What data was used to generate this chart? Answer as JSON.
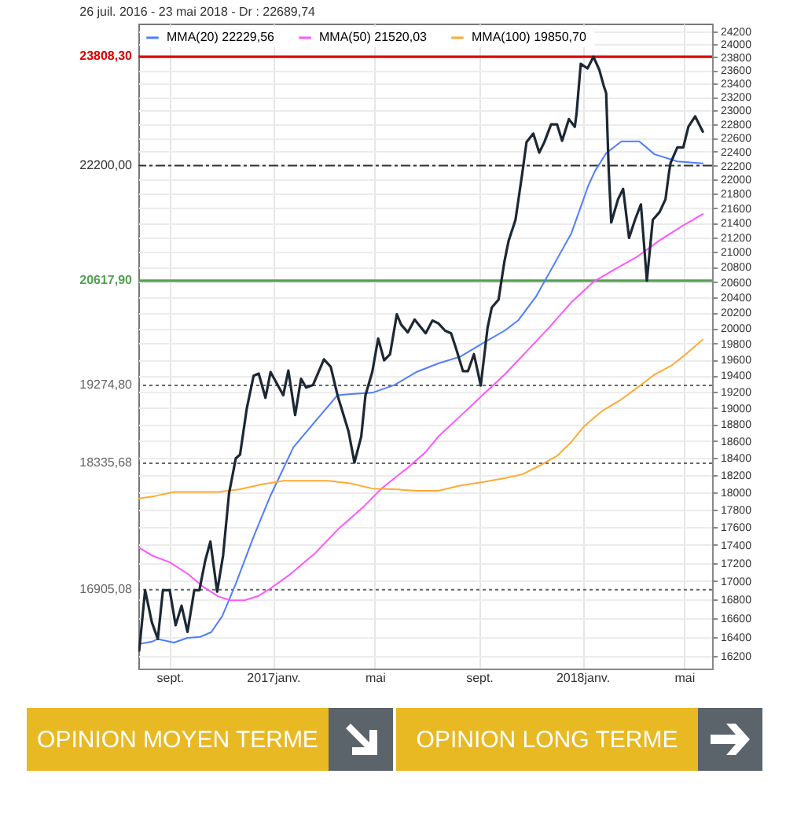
{
  "chart_data": {
    "type": "line",
    "title": "26 juil. 2016 - 23 mai 2018 - Dr : 22689,74",
    "series": [
      {
        "color": "#1c2833",
        "x": [
          "2016-07-27",
          "2016-08-03",
          "2016-08-11",
          "2016-08-18",
          "2016-08-24",
          "2016-09-01",
          "2016-09-08",
          "2016-09-15",
          "2016-09-22",
          "2016-09-30",
          "2016-10-06",
          "2016-10-13",
          "2016-10-19",
          "2016-10-27",
          "2016-11-03",
          "2016-11-10",
          "2016-11-18",
          "2016-11-23",
          "2016-12-01",
          "2016-12-09",
          "2016-12-15",
          "2016-12-23",
          "2016-12-29",
          "2017-01-13",
          "2017-01-19",
          "2017-01-27",
          "2017-02-03",
          "2017-02-09",
          "2017-02-17",
          "2017-03-02",
          "2017-03-10",
          "2017-03-18",
          "2017-03-31",
          "2017-04-07",
          "2017-04-15",
          "2017-04-20",
          "2017-04-28",
          "2017-05-05",
          "2017-05-12",
          "2017-05-19",
          "2017-05-27",
          "2017-06-01",
          "2017-06-09",
          "2017-06-17",
          "2017-06-30",
          "2017-07-08",
          "2017-07-15",
          "2017-07-23",
          "2017-07-30",
          "2017-08-05",
          "2017-08-13",
          "2017-08-19",
          "2017-08-26",
          "2017-09-03",
          "2017-09-11",
          "2017-09-16",
          "2017-09-24",
          "2017-10-01",
          "2017-10-06",
          "2017-10-14",
          "2017-10-22",
          "2017-10-27",
          "2017-11-04",
          "2017-11-11",
          "2017-11-17",
          "2017-11-25",
          "2017-12-02",
          "2017-12-08",
          "2017-12-16",
          "2017-12-23",
          "2017-12-25",
          "2017-12-30",
          "2018-01-07",
          "2018-01-14",
          "2018-01-21",
          "2018-01-26",
          "2018-01-29",
          "2018-02-01",
          "2018-02-04",
          "2018-02-12",
          "2018-02-18",
          "2018-02-25",
          "2018-03-04",
          "2018-03-11",
          "2018-03-18",
          "2018-03-25",
          "2018-04-02",
          "2018-04-09",
          "2018-04-13",
          "2018-04-15",
          "2018-04-23",
          "2018-04-30",
          "2018-05-06",
          "2018-05-14",
          "2018-05-23"
        ],
        "values": [
          16256,
          16900,
          16553,
          16378,
          16900,
          16900,
          16524,
          16732,
          16453,
          16900,
          16900,
          17226,
          17436,
          16884,
          17281,
          17983,
          18394,
          18438,
          18995,
          19396,
          19423,
          19123,
          19442,
          19155,
          19462,
          18912,
          19358,
          19249,
          19280,
          19602,
          19508,
          19155,
          18714,
          18344,
          18653,
          19155,
          19442,
          19866,
          19590,
          19667,
          20178,
          20045,
          19944,
          20110,
          19933,
          20096,
          20060,
          19965,
          19933,
          19735,
          19454,
          19454,
          19667,
          19275,
          19999,
          20265,
          20367,
          20877,
          21158,
          21439,
          22090,
          22535,
          22661,
          22385,
          22535,
          22796,
          22796,
          22557,
          22873,
          22760,
          22949,
          23699,
          23629,
          23808,
          23605,
          23372,
          23256,
          22136,
          21403,
          21724,
          21870,
          21192,
          21439,
          21654,
          20618,
          21439,
          21547,
          21724,
          22090,
          22237,
          22461,
          22461,
          22760,
          22913,
          22690
        ]
      },
      {
        "name": "MMA(20)  22229,56",
        "color": "#4f7dff",
        "x": [
          "2016-07-27",
          "2016-08-11",
          "2016-08-18",
          "2016-09-06",
          "2016-09-22",
          "2016-10-07",
          "2016-10-20",
          "2016-11-02",
          "2016-11-18",
          "2016-12-09",
          "2016-12-29",
          "2017-01-25",
          "2017-02-20",
          "2017-03-18",
          "2017-03-31",
          "2017-04-28",
          "2017-05-24",
          "2017-06-19",
          "2017-07-15",
          "2017-08-10",
          "2017-09-05",
          "2017-10-01",
          "2017-10-17",
          "2017-11-07",
          "2017-11-28",
          "2017-12-19",
          "2018-01-08",
          "2018-01-16",
          "2018-01-29",
          "2018-02-16",
          "2018-03-09",
          "2018-03-27",
          "2018-04-23",
          "2018-05-23"
        ],
        "values": [
          16325,
          16350,
          16378,
          16340,
          16390,
          16400,
          16450,
          16620,
          16970,
          17490,
          17960,
          18525,
          18840,
          19155,
          19166,
          19185,
          19280,
          19442,
          19551,
          19636,
          19802,
          19965,
          20096,
          20404,
          20824,
          21257,
          21919,
          22126,
          22377,
          22548,
          22548,
          22362,
          22259,
          22230
        ]
      },
      {
        "name": "MMA(50)  21520,03",
        "color": "#ff55ff",
        "x": [
          "2016-07-27",
          "2016-08-11",
          "2016-09-01",
          "2016-09-22",
          "2016-10-10",
          "2016-10-28",
          "2016-11-12",
          "2016-11-28",
          "2016-12-14",
          "2016-12-29",
          "2017-01-19",
          "2017-02-20",
          "2017-03-18",
          "2017-04-18",
          "2017-05-09",
          "2017-06-09",
          "2017-06-30",
          "2017-07-15",
          "2017-08-10",
          "2017-09-05",
          "2017-10-01",
          "2017-10-27",
          "2017-11-22",
          "2017-12-19",
          "2018-01-14",
          "2018-02-09",
          "2018-03-07",
          "2018-04-02",
          "2018-04-28",
          "2018-05-23"
        ],
        "values": [
          17368,
          17281,
          17206,
          17081,
          16940,
          16834,
          16790,
          16790,
          16834,
          16920,
          17058,
          17310,
          17568,
          17834,
          18042,
          18285,
          18469,
          18653,
          18901,
          19155,
          19411,
          19701,
          19999,
          20333,
          20604,
          20775,
          20941,
          21158,
          21348,
          21520
        ]
      },
      {
        "name": "MMA(100)  19850,70",
        "color": "#ffaa33",
        "x": [
          "2016-07-27",
          "2016-08-16",
          "2016-09-06",
          "2016-10-02",
          "2016-10-28",
          "2016-11-23",
          "2016-12-19",
          "2017-01-14",
          "2017-02-09",
          "2017-03-07",
          "2017-04-02",
          "2017-04-28",
          "2017-05-24",
          "2017-06-19",
          "2017-07-15",
          "2017-08-10",
          "2017-09-05",
          "2017-10-01",
          "2017-10-22",
          "2017-11-12",
          "2017-12-03",
          "2017-12-19",
          "2018-01-03",
          "2018-01-24",
          "2018-02-14",
          "2018-03-07",
          "2018-03-27",
          "2018-04-17",
          "2018-05-03",
          "2018-05-23"
        ],
        "values": [
          17925,
          17956,
          18000,
          18000,
          18000,
          18032,
          18090,
          18130,
          18130,
          18130,
          18100,
          18040,
          18032,
          18014,
          18014,
          18075,
          18115,
          18160,
          18205,
          18310,
          18430,
          18590,
          18777,
          18960,
          19090,
          19250,
          19410,
          19530,
          19667,
          19851
        ]
      }
    ],
    "xlim": [
      "2016-07-26",
      "2018-06-03"
    ],
    "xticks": [
      {
        "value": "2016-09-01",
        "label": "sept."
      },
      {
        "value": "2017-01-01",
        "label": "2017janv."
      },
      {
        "value": "2017-05-01",
        "label": "mai"
      },
      {
        "value": "2017-09-01",
        "label": "sept."
      },
      {
        "value": "2018-01-01",
        "label": "2018janv."
      },
      {
        "value": "2018-05-01",
        "label": "mai"
      }
    ],
    "ylim": [
      16070,
      24320
    ],
    "yticks": [
      16200,
      16400,
      16600,
      16800,
      17000,
      17200,
      17400,
      17600,
      17800,
      18000,
      18200,
      18400,
      18600,
      18800,
      19000,
      19200,
      19400,
      19600,
      19800,
      20000,
      20200,
      20400,
      20600,
      20800,
      21000,
      21200,
      21400,
      21600,
      21800,
      22000,
      22200,
      22400,
      22600,
      22800,
      23000,
      23200,
      23400,
      23600,
      23800,
      24000,
      24200
    ],
    "log": "y",
    "grid": true,
    "legend": "top left",
    "ref_lines": [
      {
        "axis": "y",
        "value": 23808.3,
        "label": "23808,30",
        "color": "#e00000",
        "line_style": "solid"
      },
      {
        "axis": "y",
        "value": 22200,
        "label": "22200,00",
        "color": "#333333",
        "line_style": "dashed"
      },
      {
        "axis": "y",
        "value": 20617.9,
        "label": "20617,90",
        "color": "#55a055",
        "line_style": "solid"
      },
      {
        "axis": "y",
        "value": 19274.8,
        "label": "19274,80",
        "color": "#666666",
        "line_style": "dotted"
      },
      {
        "axis": "y",
        "value": 18335.68,
        "label": "18335,68",
        "color": "#666666",
        "line_style": "dotted"
      },
      {
        "axis": "y",
        "value": 16905.08,
        "label": "16905,08",
        "color": "#666666",
        "line_style": "dotted"
      }
    ],
    "annotations": [
      "OPINION MOYEN TERME",
      "OPINION LONG TERME"
    ]
  }
}
